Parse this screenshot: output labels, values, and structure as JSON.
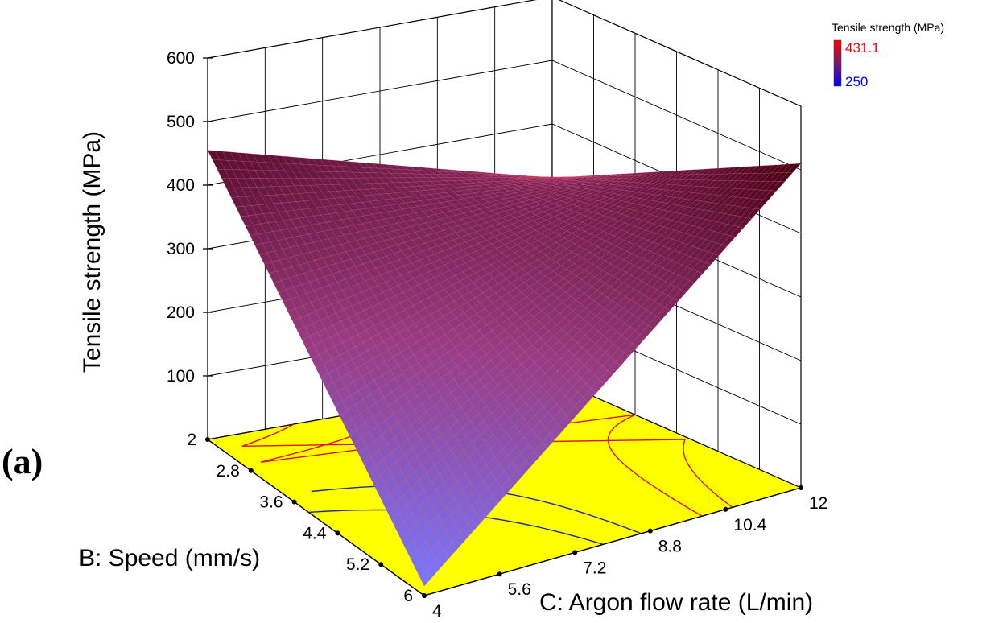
{
  "panel_label": "(a)",
  "chart_data": {
    "type": "surface3d",
    "title": "",
    "zlabel": "Tensile strength (MPa)",
    "xlabel": "B: Speed (mm/s)",
    "ylabel": "C: Argon flow rate (L/min)",
    "x_ticks": [
      "2",
      "2.8",
      "3.6",
      "4.4",
      "5.2",
      "6"
    ],
    "y_ticks": [
      "4",
      "5.6",
      "7.2",
      "8.8",
      "10.4",
      "12"
    ],
    "z_ticks": [
      "100",
      "200",
      "300",
      "400",
      "500",
      "600"
    ],
    "xlim": [
      2,
      6
    ],
    "ylim": [
      4,
      12
    ],
    "zlim": [
      0,
      600
    ],
    "grid": true,
    "surface_corners": [
      {
        "speed": 2,
        "argon": 4,
        "tensile": 455
      },
      {
        "speed": 2,
        "argon": 12,
        "tensile": 315
      },
      {
        "speed": 6,
        "argon": 4,
        "tensile": 15
      },
      {
        "speed": 6,
        "argon": 12,
        "tensile": 510
      }
    ],
    "floor_color": "#ffff00",
    "colorbar": {
      "title": "Tensile strength (MPa)",
      "max_label": "431.1",
      "min_label": "250",
      "max_color": "#ff0000",
      "min_color": "#0000ff"
    }
  }
}
